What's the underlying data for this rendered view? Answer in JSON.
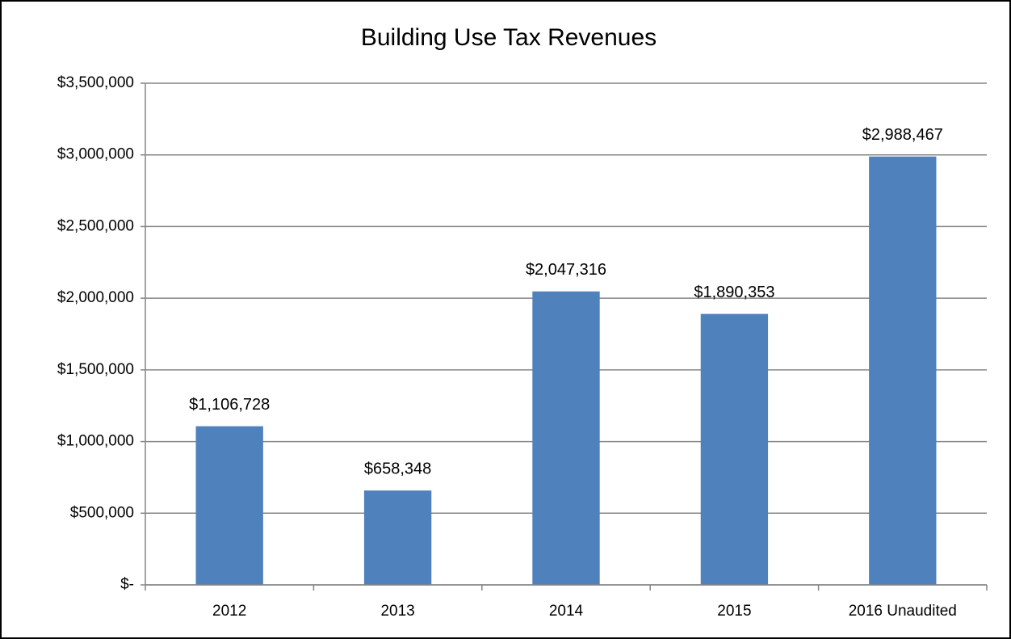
{
  "chart_data": {
    "type": "bar",
    "title": "Building Use Tax Revenues",
    "categories": [
      "2012",
      "2013",
      "2014",
      "2015",
      "2016 Unaudited"
    ],
    "values": [
      1106728,
      658348,
      2047316,
      1890353,
      2988467
    ],
    "value_labels": [
      "$1,106,728",
      "$658,348",
      "$2,047,316",
      "$1,890,353",
      "$2,988,467"
    ],
    "color": "#4f81bd",
    "ylim": [
      0,
      3500000
    ],
    "yticks": [
      {
        "value": 0,
        "label": "$-"
      },
      {
        "value": 500000,
        "label": "$500,000"
      },
      {
        "value": 1000000,
        "label": "$1,000,000"
      },
      {
        "value": 1500000,
        "label": "$1,500,000"
      },
      {
        "value": 2000000,
        "label": "$2,000,000"
      },
      {
        "value": 2500000,
        "label": "$2,500,000"
      },
      {
        "value": 3000000,
        "label": "$3,000,000"
      },
      {
        "value": 3500000,
        "label": "$3,500,000"
      }
    ],
    "grid": true
  }
}
